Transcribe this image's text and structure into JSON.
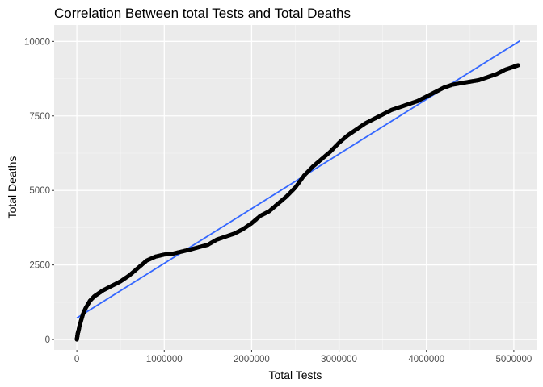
{
  "chart_data": {
    "type": "scatter",
    "title": "Correlation Between total Tests and Total Deaths",
    "xlabel": "Total Tests",
    "ylabel": "Total Deaths",
    "xlim": [
      -260000,
      5260000
    ],
    "ylim": [
      -350,
      10550
    ],
    "x_ticks": [
      0,
      1000000,
      2000000,
      3000000,
      4000000,
      5000000
    ],
    "x_tick_labels": [
      "0",
      "1000000",
      "2000000",
      "3000000",
      "4000000",
      "5000000"
    ],
    "y_ticks": [
      0,
      2500,
      5000,
      7500,
      10000
    ],
    "y_tick_labels": [
      "0",
      "2500",
      "5000",
      "7500",
      "10000"
    ],
    "grid": true,
    "colors": {
      "panel_background": "#ebebeb",
      "grid_major": "#ffffff",
      "points": "#000000",
      "fit_line": "#3366ff"
    },
    "series": [
      {
        "kind": "points",
        "x": [
          0,
          5000,
          10000,
          20000,
          30000,
          50000,
          70000,
          100000,
          150000,
          200000,
          250000,
          300000,
          400000,
          500000,
          600000,
          700000,
          800000,
          900000,
          1000000,
          1100000,
          1200000,
          1300000,
          1400000,
          1500000,
          1600000,
          1700000,
          1800000,
          1900000,
          2000000,
          2100000,
          2200000,
          2300000,
          2400000,
          2500000,
          2600000,
          2700000,
          2800000,
          2900000,
          3000000,
          3100000,
          3200000,
          3300000,
          3400000,
          3500000,
          3600000,
          3700000,
          3800000,
          3900000,
          4000000,
          4100000,
          4200000,
          4300000,
          4400000,
          4500000,
          4600000,
          4700000,
          4800000,
          4900000,
          5000000,
          5050000
        ],
        "y": [
          0,
          100,
          200,
          300,
          450,
          650,
          850,
          1050,
          1300,
          1450,
          1550,
          1650,
          1800,
          1950,
          2150,
          2400,
          2650,
          2780,
          2850,
          2880,
          2950,
          3020,
          3100,
          3180,
          3350,
          3450,
          3550,
          3700,
          3900,
          4150,
          4300,
          4550,
          4800,
          5100,
          5500,
          5800,
          6050,
          6300,
          6600,
          6850,
          7050,
          7250,
          7400,
          7550,
          7700,
          7800,
          7900,
          8000,
          8150,
          8300,
          8450,
          8550,
          8600,
          8650,
          8700,
          8800,
          8900,
          9050,
          9150,
          9200
        ]
      },
      {
        "kind": "fit",
        "x": [
          0,
          5070000
        ],
        "y": [
          720,
          10020
        ]
      }
    ]
  }
}
